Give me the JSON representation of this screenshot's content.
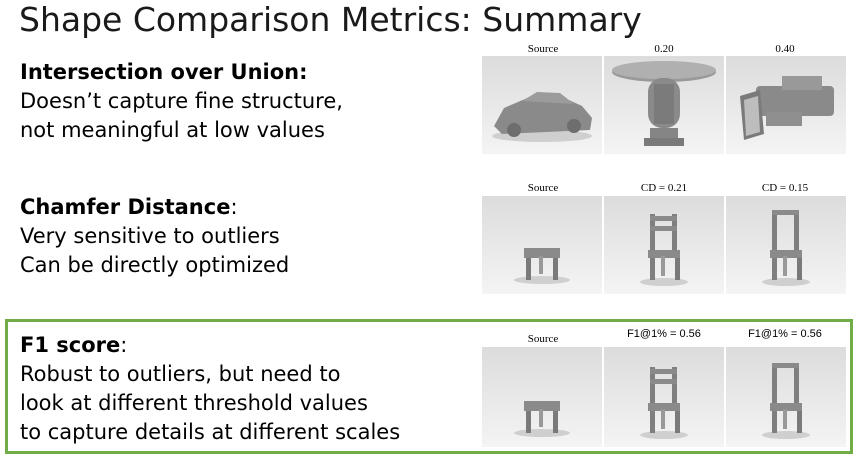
{
  "slide": {
    "title": "Shape Comparison Metrics: Summary"
  },
  "sections": [
    {
      "heading": "Intersection over Union:",
      "heading_suffix": "",
      "lines": [
        "Doesn’t capture fine structure,",
        "not meaningful at low values"
      ],
      "captions": [
        "Source",
        "0.20",
        "0.40"
      ]
    },
    {
      "heading": "Chamfer Distance",
      "heading_suffix": ":",
      "lines": [
        "Very sensitive to outliers",
        "Can be directly optimized"
      ],
      "captions": [
        "Source",
        "CD = 0.21",
        "CD = 0.15"
      ]
    },
    {
      "heading": "F1 score",
      "heading_suffix": ":",
      "lines": [
        "Robust to outliers, but need to",
        "look at different threshold values",
        "to capture details at different scales"
      ],
      "captions": [
        "Source",
        "F1@1% = 0.56",
        "F1@1% = 0.56"
      ]
    }
  ],
  "colors": {
    "highlight_border": "#70ad47",
    "render_shape": "#8a8a8a",
    "render_background": "#e6e6e6"
  }
}
